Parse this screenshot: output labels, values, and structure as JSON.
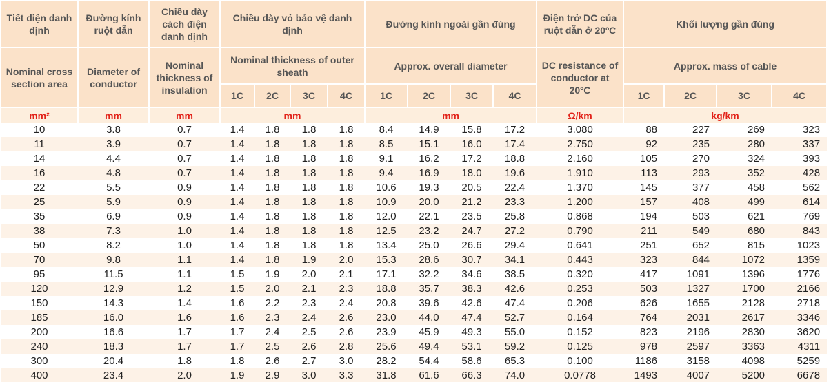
{
  "header": {
    "groups": [
      {
        "vi": "Tiết diện danh định",
        "en": "Nominal cross section area",
        "unit": "mm²"
      },
      {
        "vi": "Đường kính ruột dẫn",
        "en": "Diameter of conductor",
        "unit": "mm"
      },
      {
        "vi": "Chiều dày cách điện danh định",
        "en": "Nominal thickness of insulation",
        "unit": "mm"
      },
      {
        "vi": "Chiều dày vỏ bảo vệ danh định",
        "en": "Nominal thickness of outer sheath",
        "sub": [
          "1C",
          "2C",
          "3C",
          "4C"
        ],
        "unit": "mm"
      },
      {
        "vi": "Đường kính ngoài gần đúng",
        "en": "Approx. overall diameter",
        "sub": [
          "1C",
          "2C",
          "3C",
          "4C"
        ],
        "unit": "mm"
      },
      {
        "vi": "Điện trở DC của ruột dẫn ở 20ºC",
        "en": "DC resistance of conductor at 20ºC",
        "unit": "Ω/km"
      },
      {
        "vi": "Khối lượng gần đúng",
        "en": "Approx. mass of cable",
        "sub": [
          "1C",
          "2C",
          "3C",
          "4C"
        ],
        "unit": "kg/km"
      }
    ]
  },
  "table": {
    "rows": [
      [
        "10",
        "3.8",
        "0.7",
        "1.4",
        "1.8",
        "1.8",
        "1.8",
        "8.4",
        "14.9",
        "15.8",
        "17.2",
        "3.080",
        "88",
        "227",
        "269",
        "323"
      ],
      [
        "11",
        "3.9",
        "0.7",
        "1.4",
        "1.8",
        "1.8",
        "1.8",
        "8.5",
        "15.1",
        "16.0",
        "17.4",
        "2.750",
        "92",
        "235",
        "280",
        "337"
      ],
      [
        "14",
        "4.4",
        "0.7",
        "1.4",
        "1.8",
        "1.8",
        "1.8",
        "9.1",
        "16.2",
        "17.2",
        "18.8",
        "2.160",
        "105",
        "270",
        "324",
        "393"
      ],
      [
        "16",
        "4.8",
        "0.7",
        "1.4",
        "1.8",
        "1.8",
        "1.8",
        "9.4",
        "16.9",
        "18.0",
        "19.6",
        "1.910",
        "113",
        "293",
        "352",
        "428"
      ],
      [
        "22",
        "5.5",
        "0.9",
        "1.4",
        "1.8",
        "1.8",
        "1.8",
        "10.6",
        "19.3",
        "20.5",
        "22.4",
        "1.370",
        "145",
        "377",
        "458",
        "562"
      ],
      [
        "25",
        "5.9",
        "0.9",
        "1.4",
        "1.8",
        "1.8",
        "1.8",
        "10.9",
        "20.0",
        "21.2",
        "23.3",
        "1.200",
        "157",
        "408",
        "499",
        "614"
      ],
      [
        "35",
        "6.9",
        "0.9",
        "1.4",
        "1.8",
        "1.8",
        "1.8",
        "12.0",
        "22.1",
        "23.5",
        "25.8",
        "0.868",
        "194",
        "503",
        "621",
        "769"
      ],
      [
        "38",
        "7.3",
        "1.0",
        "1.4",
        "1.8",
        "1.8",
        "1.8",
        "12.5",
        "23.2",
        "24.7",
        "27.2",
        "0.790",
        "211",
        "549",
        "680",
        "843"
      ],
      [
        "50",
        "8.2",
        "1.0",
        "1.4",
        "1.8",
        "1.8",
        "1.8",
        "13.4",
        "25.0",
        "26.6",
        "29.4",
        "0.641",
        "251",
        "652",
        "815",
        "1023"
      ],
      [
        "70",
        "9.8",
        "1.1",
        "1.4",
        "1.8",
        "1.9",
        "2.0",
        "15.3",
        "28.6",
        "30.7",
        "34.1",
        "0.443",
        "323",
        "844",
        "1072",
        "1359"
      ],
      [
        "95",
        "11.5",
        "1.1",
        "1.5",
        "1.9",
        "2.0",
        "2.1",
        "17.1",
        "32.2",
        "34.6",
        "38.5",
        "0.320",
        "417",
        "1091",
        "1396",
        "1776"
      ],
      [
        "120",
        "12.9",
        "1.2",
        "1.5",
        "2.0",
        "2.1",
        "2.3",
        "18.8",
        "35.7",
        "38.3",
        "42.6",
        "0.253",
        "503",
        "1327",
        "1700",
        "2166"
      ],
      [
        "150",
        "14.3",
        "1.4",
        "1.6",
        "2.2",
        "2.3",
        "2.4",
        "20.8",
        "39.6",
        "42.6",
        "47.4",
        "0.206",
        "626",
        "1655",
        "2128",
        "2718"
      ],
      [
        "185",
        "16.0",
        "1.6",
        "1.6",
        "2.3",
        "2.4",
        "2.6",
        "23.0",
        "44.0",
        "47.4",
        "52.7",
        "0.164",
        "764",
        "2031",
        "2617",
        "3346"
      ],
      [
        "200",
        "16.6",
        "1.7",
        "1.7",
        "2.4",
        "2.5",
        "2.6",
        "23.9",
        "45.9",
        "49.3",
        "55.0",
        "0.152",
        "823",
        "2196",
        "2830",
        "3620"
      ],
      [
        "240",
        "18.3",
        "1.7",
        "1.7",
        "2.5",
        "2.6",
        "2.8",
        "25.6",
        "49.4",
        "53.1",
        "59.2",
        "0.125",
        "978",
        "2597",
        "3363",
        "4311"
      ],
      [
        "300",
        "20.4",
        "1.8",
        "1.8",
        "2.6",
        "2.7",
        "3.0",
        "28.2",
        "54.4",
        "58.6",
        "65.3",
        "0.100",
        "1186",
        "3158",
        "4098",
        "5259"
      ],
      [
        "400",
        "23.4",
        "2.0",
        "1.9",
        "2.9",
        "3.0",
        "3.3",
        "31.8",
        "61.6",
        "66.3",
        "74.0",
        "0.0778",
        "1493",
        "4007",
        "5200",
        "6678"
      ]
    ]
  }
}
